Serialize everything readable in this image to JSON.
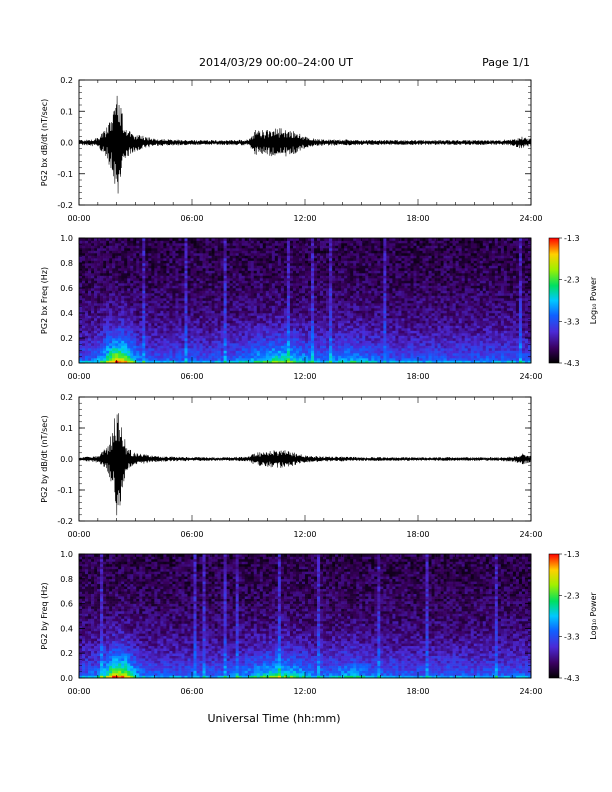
{
  "header": {
    "title": "2014/03/29   00:00–24:00 UT",
    "page": "Page 1/1"
  },
  "footer": {
    "xlabel": "Universal Time (hh:mm)"
  },
  "time_ticks": [
    "00:00",
    "06:00",
    "12:00",
    "18:00",
    "24:00"
  ],
  "chart_data": [
    {
      "type": "line",
      "ylabel": "PG2 bx dB/dt (nT/sec)",
      "xlim": [
        0,
        24
      ],
      "ylim": [
        -0.2,
        0.2
      ],
      "yticks": [
        "0.2",
        "0.1",
        "0.0",
        "-0.1",
        "-0.2"
      ],
      "xticks": [
        "00:00",
        "06:00",
        "12:00",
        "18:00",
        "24:00"
      ],
      "envelope": {
        "t": [
          0,
          0.5,
          1.0,
          1.5,
          1.8,
          2.0,
          2.2,
          2.5,
          3.0,
          3.5,
          4.0,
          5.0,
          6.0,
          7.0,
          8.0,
          9.0,
          9.3,
          10.0,
          10.5,
          11.0,
          11.5,
          12.0,
          12.5,
          13.0,
          14.0,
          15.0,
          16.0,
          17.0,
          18.0,
          19.0,
          20.0,
          21.0,
          22.0,
          23.0,
          23.5,
          24.0
        ],
        "amp": [
          0.008,
          0.01,
          0.015,
          0.05,
          0.12,
          0.2,
          0.12,
          0.05,
          0.03,
          0.02,
          0.012,
          0.01,
          0.008,
          0.008,
          0.008,
          0.01,
          0.04,
          0.04,
          0.05,
          0.045,
          0.035,
          0.02,
          0.012,
          0.01,
          0.01,
          0.008,
          0.008,
          0.008,
          0.008,
          0.008,
          0.008,
          0.008,
          0.008,
          0.01,
          0.02,
          0.012
        ]
      }
    },
    {
      "type": "heatmap",
      "ylabel": "PG2 bx Freq (Hz)",
      "colorbar_label": "Log₁₀ Power",
      "xlim": [
        0,
        24
      ],
      "ylim": [
        0.0,
        1.0
      ],
      "yticks": [
        "1.0",
        "0.8",
        "0.6",
        "0.4",
        "0.2",
        "0.0"
      ],
      "xticks": [
        "00:00",
        "06:00",
        "12:00",
        "18:00",
        "24:00"
      ],
      "clim": [
        -4.3,
        -1.3
      ],
      "cticks": [
        "-1.3",
        "-2.3",
        "-3.3",
        "-4.3"
      ]
    },
    {
      "type": "line",
      "ylabel": "PG2 by dB/dt (nT/sec)",
      "xlim": [
        0,
        24
      ],
      "ylim": [
        -0.2,
        0.2
      ],
      "yticks": [
        "0.2",
        "0.1",
        "0.0",
        "-0.1",
        "-0.2"
      ],
      "xticks": [
        "00:00",
        "06:00",
        "12:00",
        "18:00",
        "24:00"
      ],
      "envelope": {
        "t": [
          0,
          0.5,
          1.0,
          1.5,
          1.8,
          2.0,
          2.2,
          2.5,
          3.0,
          3.5,
          4.0,
          5.0,
          6.0,
          7.0,
          8.0,
          9.0,
          9.3,
          10.0,
          10.5,
          11.0,
          11.5,
          12.0,
          12.5,
          13.0,
          14.0,
          15.0,
          16.0,
          17.0,
          18.0,
          19.0,
          20.0,
          21.0,
          22.0,
          23.0,
          23.5,
          24.0
        ],
        "amp": [
          0.006,
          0.008,
          0.012,
          0.04,
          0.1,
          0.2,
          0.15,
          0.04,
          0.02,
          0.015,
          0.01,
          0.008,
          0.006,
          0.006,
          0.006,
          0.008,
          0.02,
          0.025,
          0.03,
          0.028,
          0.02,
          0.012,
          0.01,
          0.008,
          0.008,
          0.006,
          0.006,
          0.006,
          0.006,
          0.006,
          0.006,
          0.006,
          0.006,
          0.008,
          0.02,
          0.01
        ]
      }
    },
    {
      "type": "heatmap",
      "ylabel": "PG2 by Freq (Hz)",
      "colorbar_label": "Log₁₀ Power",
      "xlim": [
        0,
        24
      ],
      "ylim": [
        0.0,
        1.0
      ],
      "yticks": [
        "1.0",
        "0.8",
        "0.6",
        "0.4",
        "0.2",
        "0.0"
      ],
      "xticks": [
        "00:00",
        "06:00",
        "12:00",
        "18:00",
        "24:00"
      ],
      "clim": [
        -4.3,
        -1.3
      ],
      "cticks": [
        "-1.3",
        "-2.3",
        "-3.3",
        "-4.3"
      ]
    }
  ]
}
